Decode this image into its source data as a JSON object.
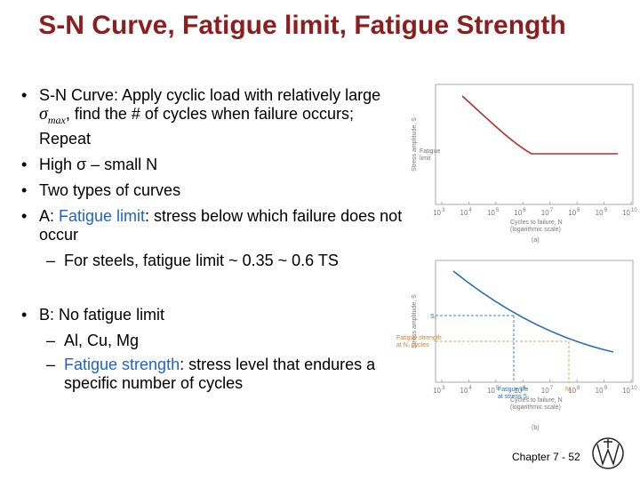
{
  "title": "S-N Curve, Fatigue limit, Fatigue Strength",
  "bullets": [
    {
      "level": 1,
      "segments": [
        {
          "text": "S-N Curve: Apply cyclic load with relatively large "
        },
        {
          "math": "σ",
          "sub": "max"
        },
        {
          "text": ", find the # of cycles when failure occurs; Repeat"
        }
      ]
    },
    {
      "level": 1,
      "segments": [
        {
          "text": "High σ – small N"
        }
      ]
    },
    {
      "level": 1,
      "segments": [
        {
          "text": "Two types of curves"
        }
      ]
    },
    {
      "level": 1,
      "segments": [
        {
          "text": "A: "
        },
        {
          "text": "Fatigue limit",
          "style": "blue"
        },
        {
          "text": ": stress below which failure does not occur"
        }
      ]
    },
    {
      "level": 2,
      "segments": [
        {
          "text": "For steels, fatigue limit ~ 0.35 ~ 0.6 TS"
        }
      ]
    },
    {
      "level": 1,
      "segments": [
        {
          "text": "B: No fatigue limit"
        }
      ]
    },
    {
      "level": 2,
      "segments": [
        {
          "text": "Al, Cu, Mg"
        }
      ]
    },
    {
      "level": 2,
      "segments": [
        {
          "text": "Fatigue strength",
          "style": "blue"
        },
        {
          "text": ": stress level that endures a specific number of cycles"
        }
      ]
    }
  ],
  "figures": [
    {
      "y_label": "Stress amplitude, S",
      "annotation": [
        "Fatigue",
        "limit"
      ],
      "x_ticks": [
        {
          "base": "10",
          "exp": "3"
        },
        {
          "base": "10",
          "exp": "4"
        },
        {
          "base": "10",
          "exp": "5"
        },
        {
          "base": "10",
          "exp": "6"
        },
        {
          "base": "10",
          "exp": "7"
        },
        {
          "base": "10",
          "exp": "8"
        },
        {
          "base": "10",
          "exp": "9"
        },
        {
          "base": "10",
          "exp": "10"
        }
      ],
      "x_label": [
        "Cycles to failure, N",
        "(logarithmic scale)"
      ],
      "caption": "(a)"
    },
    {
      "y_label": "Stress amplitude, S",
      "s_label": "S₁",
      "annotation": [
        "Fatigue strength",
        "at N₁ cycles"
      ],
      "life_label": [
        "Fatigue life",
        "at stress S₁"
      ],
      "n_label": "N₁",
      "x_ticks": [
        {
          "base": "10",
          "exp": "3"
        },
        {
          "base": "10",
          "exp": "4"
        },
        {
          "base": "10",
          "exp": "5"
        },
        {
          "base": "10",
          "exp": "6"
        },
        {
          "base": "10",
          "exp": "7"
        },
        {
          "base": "10",
          "exp": "8"
        },
        {
          "base": "10",
          "exp": "9"
        },
        {
          "base": "10",
          "exp": "10"
        }
      ],
      "x_label": [
        "Cycles to failure, N",
        "(logarithmic scale)"
      ],
      "caption": "(b)"
    }
  ],
  "footer": {
    "chapter": "Chapter 7 - ",
    "page": "52"
  }
}
